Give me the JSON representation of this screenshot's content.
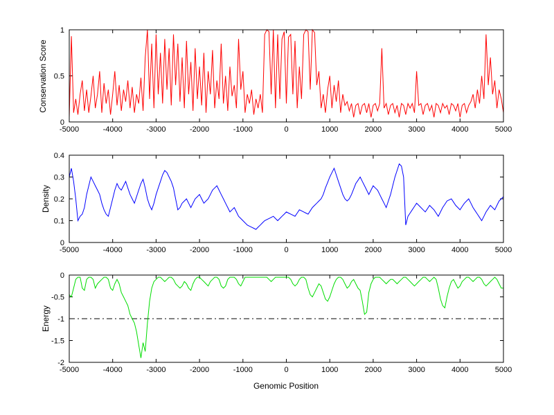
{
  "figure": {
    "background": "#ffffff",
    "axis_color": "#000000",
    "tick_label_color": "#000000"
  },
  "chart_data": [
    {
      "type": "line",
      "series_name": "conservation-score",
      "title": "",
      "ylabel": "Conservation Score",
      "xlabel": "",
      "color": "#ff0000",
      "grid": false,
      "legend": "none",
      "xlim": [
        -5000,
        5000
      ],
      "ylim": [
        0,
        1
      ],
      "xticks": [
        -5000,
        -4000,
        -3000,
        -2000,
        -1000,
        0,
        1000,
        2000,
        3000,
        4000,
        5000
      ],
      "xtick_labels": [
        "-5000",
        "-4000",
        "-3000",
        "-2000",
        "-1000",
        "0",
        "1000",
        "2000",
        "3000",
        "4000",
        "5000"
      ],
      "yticks": [
        0,
        0.5,
        1
      ],
      "ytick_labels": [
        "0",
        "0.5",
        "1"
      ],
      "x_start": -5000,
      "x_step": 50,
      "values": [
        0.05,
        0.93,
        0.1,
        0.25,
        0.08,
        0.3,
        0.45,
        0.12,
        0.35,
        0.1,
        0.28,
        0.5,
        0.15,
        0.3,
        0.55,
        0.1,
        0.42,
        0.2,
        0.35,
        0.08,
        0.3,
        0.55,
        0.18,
        0.4,
        0.12,
        0.35,
        0.22,
        0.45,
        0.15,
        0.38,
        0.1,
        0.3,
        0.2,
        0.48,
        0.12,
        0.7,
        1.0,
        0.25,
        0.85,
        0.15,
        0.95,
        0.3,
        0.75,
        0.2,
        0.9,
        0.35,
        0.8,
        0.18,
        0.95,
        0.4,
        0.85,
        0.22,
        0.7,
        0.15,
        0.88,
        0.3,
        0.65,
        0.12,
        0.8,
        0.25,
        0.6,
        0.18,
        0.75,
        0.1,
        0.55,
        0.3,
        0.78,
        0.15,
        0.45,
        0.25,
        0.85,
        0.2,
        0.5,
        0.12,
        0.6,
        0.28,
        0.4,
        0.15,
        0.9,
        0.35,
        0.55,
        0.1,
        0.3,
        0.2,
        0.35,
        0.08,
        0.25,
        0.15,
        0.3,
        0.1,
        0.95,
        1.0,
        0.98,
        0.3,
        1.0,
        0.15,
        0.95,
        0.25,
        0.9,
        0.98,
        0.2,
        0.92,
        0.95,
        0.3,
        0.88,
        0.15,
        0.6,
        0.25,
        0.95,
        1.0,
        0.98,
        0.35,
        1.0,
        0.97,
        0.4,
        0.55,
        0.15,
        0.3,
        0.1,
        0.35,
        0.5,
        0.15,
        0.4,
        0.22,
        0.45,
        0.1,
        0.3,
        0.18,
        0.22,
        0.12,
        0.2,
        0.05,
        0.18,
        0.2,
        0.08,
        0.18,
        0.2,
        0.1,
        0.2,
        0.05,
        0.18,
        0.2,
        0.12,
        0.2,
        0.8,
        0.15,
        0.2,
        0.08,
        0.18,
        0.2,
        0.1,
        0.18,
        0.05,
        0.2,
        0.18,
        0.08,
        0.2,
        0.15,
        0.2,
        0.1,
        0.55,
        0.18,
        0.2,
        0.08,
        0.18,
        0.2,
        0.12,
        0.18,
        0.05,
        0.2,
        0.18,
        0.1,
        0.2,
        0.15,
        0.18,
        0.08,
        0.2,
        0.18,
        0.12,
        0.2,
        0.05,
        0.18,
        0.2,
        0.1,
        0.18,
        0.22,
        0.3,
        0.15,
        0.35,
        0.2,
        0.5,
        0.25,
        0.95,
        0.4,
        0.7,
        0.3,
        0.45,
        0.15,
        0.35,
        0.25,
        0.1
      ]
    },
    {
      "type": "line",
      "series_name": "density",
      "title": "",
      "ylabel": "Density",
      "xlabel": "",
      "color": "#0000ff",
      "grid": false,
      "legend": "none",
      "xlim": [
        -5000,
        5000
      ],
      "ylim": [
        0,
        0.4
      ],
      "xticks": [
        -5000,
        -4000,
        -3000,
        -2000,
        -1000,
        0,
        1000,
        2000,
        3000,
        4000,
        5000
      ],
      "xtick_labels": [
        "-5000",
        "-4000",
        "-3000",
        "-2000",
        "-1000",
        "0",
        "1000",
        "2000",
        "3000",
        "4000",
        "5000"
      ],
      "yticks": [
        0,
        0.1,
        0.2,
        0.3,
        0.4
      ],
      "ytick_labels": [
        "0",
        "0.1",
        "0.2",
        "0.3",
        "0.4"
      ],
      "x_start": -5000,
      "x_step": 50,
      "values": [
        0.3,
        0.34,
        0.28,
        0.2,
        0.1,
        0.12,
        0.13,
        0.16,
        0.22,
        0.26,
        0.3,
        0.28,
        0.26,
        0.24,
        0.22,
        0.18,
        0.15,
        0.13,
        0.12,
        0.16,
        0.2,
        0.24,
        0.27,
        0.25,
        0.24,
        0.26,
        0.28,
        0.25,
        0.22,
        0.2,
        0.18,
        0.21,
        0.24,
        0.27,
        0.29,
        0.25,
        0.2,
        0.17,
        0.15,
        0.18,
        0.22,
        0.25,
        0.28,
        0.31,
        0.33,
        0.32,
        0.3,
        0.28,
        0.25,
        0.2,
        0.15,
        0.16,
        0.18,
        0.19,
        0.2,
        0.18,
        0.16,
        0.18,
        0.2,
        0.21,
        0.22,
        0.2,
        0.18,
        0.19,
        0.2,
        0.22,
        0.24,
        0.25,
        0.26,
        0.24,
        0.22,
        0.2,
        0.18,
        0.16,
        0.14,
        0.15,
        0.16,
        0.14,
        0.12,
        0.11,
        0.1,
        0.09,
        0.08,
        0.075,
        0.07,
        0.065,
        0.06,
        0.07,
        0.08,
        0.09,
        0.1,
        0.105,
        0.11,
        0.115,
        0.12,
        0.11,
        0.1,
        0.11,
        0.12,
        0.13,
        0.14,
        0.135,
        0.13,
        0.125,
        0.12,
        0.135,
        0.15,
        0.145,
        0.14,
        0.135,
        0.13,
        0.145,
        0.16,
        0.17,
        0.18,
        0.19,
        0.2,
        0.22,
        0.25,
        0.275,
        0.3,
        0.32,
        0.34,
        0.31,
        0.28,
        0.25,
        0.22,
        0.2,
        0.19,
        0.2,
        0.22,
        0.245,
        0.27,
        0.285,
        0.3,
        0.28,
        0.26,
        0.24,
        0.22,
        0.24,
        0.26,
        0.25,
        0.24,
        0.22,
        0.2,
        0.18,
        0.16,
        0.19,
        0.22,
        0.26,
        0.3,
        0.33,
        0.36,
        0.35,
        0.3,
        0.08,
        0.12,
        0.135,
        0.15,
        0.165,
        0.18,
        0.17,
        0.16,
        0.15,
        0.14,
        0.155,
        0.17,
        0.16,
        0.15,
        0.135,
        0.12,
        0.14,
        0.16,
        0.175,
        0.19,
        0.195,
        0.2,
        0.185,
        0.17,
        0.16,
        0.15,
        0.165,
        0.18,
        0.19,
        0.2,
        0.18,
        0.16,
        0.145,
        0.13,
        0.115,
        0.1,
        0.12,
        0.14,
        0.155,
        0.17,
        0.16,
        0.15,
        0.17,
        0.19,
        0.2,
        0.21
      ]
    },
    {
      "type": "line",
      "series_name": "energy",
      "title": "",
      "ylabel": "Energy",
      "xlabel": "Genomic Position",
      "color": "#00dd00",
      "grid": false,
      "legend": "none",
      "xlim": [
        -5000,
        5000
      ],
      "ylim": [
        -2,
        0
      ],
      "xticks": [
        -5000,
        -4000,
        -3000,
        -2000,
        -1000,
        0,
        1000,
        2000,
        3000,
        4000,
        5000
      ],
      "xtick_labels": [
        "-5000",
        "-4000",
        "-3000",
        "-2000",
        "-1000",
        "0",
        "1000",
        "2000",
        "3000",
        "4000",
        "5000"
      ],
      "yticks": [
        -2,
        -1.5,
        -1,
        -0.5,
        0
      ],
      "ytick_labels": [
        "-2",
        "-1.5",
        "-1",
        "-0.5",
        "0"
      ],
      "refline": {
        "y": -1,
        "style": "dash-dot",
        "color": "#000000"
      },
      "x_start": -5000,
      "x_step": 50,
      "values": [
        -0.45,
        -0.5,
        -0.3,
        -0.1,
        -0.05,
        -0.05,
        -0.3,
        -0.35,
        -0.1,
        -0.05,
        -0.05,
        -0.1,
        -0.3,
        -0.2,
        -0.15,
        -0.1,
        -0.05,
        -0.05,
        -0.1,
        -0.3,
        -0.35,
        -0.2,
        -0.1,
        -0.2,
        -0.4,
        -0.5,
        -0.6,
        -0.7,
        -0.9,
        -1.0,
        -1.1,
        -1.3,
        -1.6,
        -1.9,
        -1.55,
        -1.75,
        -1.1,
        -0.6,
        -0.3,
        -0.15,
        -0.1,
        -0.05,
        -0.05,
        -0.1,
        -0.15,
        -0.1,
        -0.05,
        -0.05,
        -0.1,
        -0.2,
        -0.25,
        -0.3,
        -0.25,
        -0.15,
        -0.2,
        -0.3,
        -0.35,
        -0.2,
        -0.1,
        -0.05,
        -0.05,
        -0.1,
        -0.15,
        -0.2,
        -0.25,
        -0.15,
        -0.1,
        -0.05,
        -0.05,
        -0.1,
        -0.25,
        -0.3,
        -0.25,
        -0.1,
        -0.05,
        -0.05,
        -0.05,
        -0.1,
        -0.2,
        -0.25,
        -0.15,
        -0.05,
        -0.05,
        -0.05,
        -0.05,
        -0.05,
        -0.05,
        -0.05,
        -0.05,
        -0.05,
        -0.05,
        -0.05,
        -0.1,
        -0.15,
        -0.1,
        -0.05,
        -0.05,
        -0.05,
        -0.05,
        -0.05,
        -0.05,
        -0.05,
        -0.1,
        -0.2,
        -0.25,
        -0.2,
        -0.1,
        -0.05,
        -0.05,
        -0.1,
        -0.3,
        -0.45,
        -0.5,
        -0.4,
        -0.3,
        -0.2,
        -0.25,
        -0.4,
        -0.55,
        -0.6,
        -0.5,
        -0.35,
        -0.2,
        -0.1,
        -0.05,
        -0.05,
        -0.1,
        -0.2,
        -0.3,
        -0.25,
        -0.15,
        -0.1,
        -0.2,
        -0.3,
        -0.35,
        -0.6,
        -0.9,
        -0.85,
        -0.4,
        -0.2,
        -0.1,
        -0.05,
        -0.05,
        -0.05,
        -0.1,
        -0.15,
        -0.2,
        -0.15,
        -0.1,
        -0.1,
        -0.15,
        -0.2,
        -0.15,
        -0.1,
        -0.05,
        -0.05,
        -0.1,
        -0.15,
        -0.2,
        -0.25,
        -0.2,
        -0.15,
        -0.1,
        -0.05,
        -0.05,
        -0.1,
        -0.15,
        -0.1,
        -0.05,
        -0.1,
        -0.3,
        -0.55,
        -0.7,
        -0.75,
        -0.5,
        -0.3,
        -0.15,
        -0.1,
        -0.2,
        -0.3,
        -0.25,
        -0.15,
        -0.1,
        -0.05,
        -0.05,
        -0.1,
        -0.15,
        -0.1,
        -0.05,
        -0.05,
        -0.1,
        -0.2,
        -0.25,
        -0.2,
        -0.15,
        -0.1,
        -0.05,
        -0.1,
        -0.2,
        -0.3,
        -0.3
      ]
    }
  ]
}
